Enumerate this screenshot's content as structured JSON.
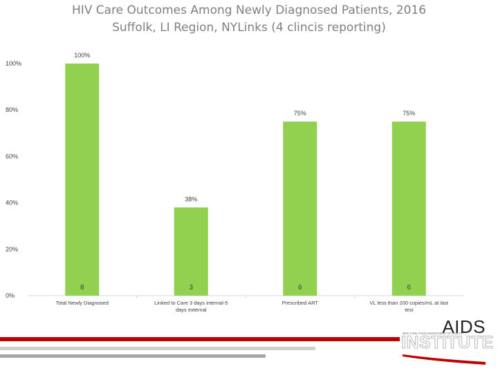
{
  "header": {
    "title": "HIV Care Outcomes Among Newly Diagnosed Patients, 2016",
    "subtitle": "Suffolk, LI Region, NYLinks (4 clincis reporting)"
  },
  "chart_data": {
    "type": "bar",
    "categories": [
      "Total Newly Diagnosed",
      "Linked to Care 3 days internal-5 days external",
      "Prescribed ART",
      "VL less than 200 copies/mL at last test"
    ],
    "values": [
      100,
      38,
      75,
      75
    ],
    "value_labels": [
      "100%",
      "38%",
      "75%",
      "75%"
    ],
    "counts": [
      "8",
      "3",
      "6",
      "6"
    ],
    "ylim": [
      0,
      100
    ],
    "yticks": [
      "0%",
      "20%",
      "40%",
      "60%",
      "80%",
      "100%"
    ],
    "bar_color": "#92d050",
    "grid": false
  },
  "logo": {
    "name": "AIDS",
    "name2": "INSTITUTE",
    "tagline": "NEW YORK STATE DEPARTMENT OF HEALTH"
  },
  "colors": {
    "accent": "#c00000",
    "gray": "#bfbfbf"
  }
}
